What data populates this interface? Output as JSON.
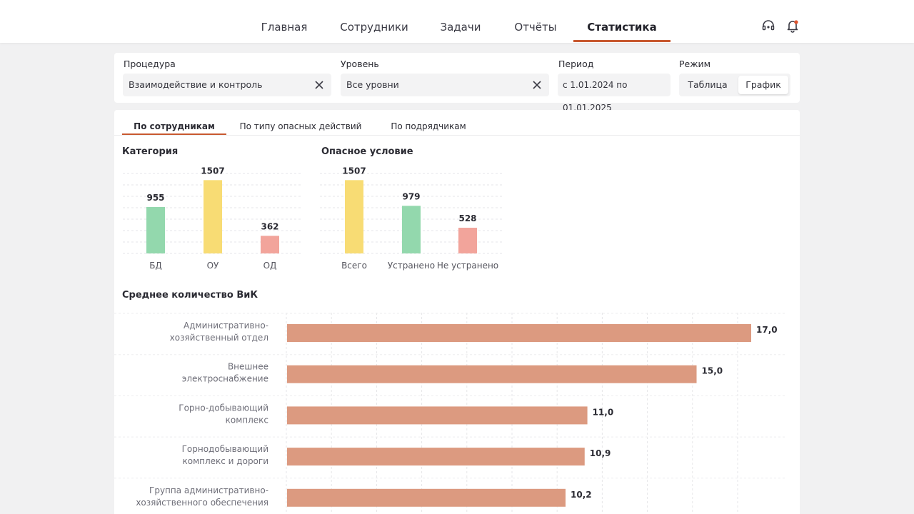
{
  "nav": {
    "items": [
      "Главная",
      "Сотрудники",
      "Задачи",
      "Отчёты",
      "Статистика"
    ],
    "active_index": 4,
    "support_icon": "headset-icon",
    "notification_icon": "bell-icon",
    "notification_badge_color": "#e0522c"
  },
  "filters": {
    "procedure": {
      "label": "Процедура",
      "value": "Взаимодействие и контроль"
    },
    "level": {
      "label": "Уровень",
      "value": "Все уровни"
    },
    "period": {
      "label": "Период",
      "value": "с 1.01.2024 по 01.01.2025"
    },
    "mode": {
      "label": "Режим",
      "options": [
        "Таблица",
        "График"
      ],
      "selected": "График"
    }
  },
  "tabs": {
    "items": [
      "По сотрудникам",
      "По типу опасных действий",
      "По подрядчикам"
    ],
    "active_index": 0
  },
  "colors": {
    "accent": "#c8582f",
    "green": "#93d8ad",
    "yellow": "#f8dc74",
    "red": "#f2a49b",
    "bar_orange": "#dc9a80"
  },
  "chart_data": [
    {
      "type": "bar",
      "title": "Категория",
      "categories": [
        "БД",
        "ОУ",
        "ОД"
      ],
      "values": [
        955,
        1507,
        362
      ],
      "colors": [
        "#93d8ad",
        "#f8dc74",
        "#f2a49b"
      ],
      "ylim": [
        0,
        1600
      ],
      "grid": true
    },
    {
      "type": "bar",
      "title": "Опасное условие",
      "categories": [
        "Всего",
        "Устранено",
        "Не устранено"
      ],
      "values": [
        1507,
        979,
        528
      ],
      "colors": [
        "#f8dc74",
        "#93d8ad",
        "#f2a49b"
      ],
      "ylim": [
        0,
        1600
      ],
      "grid": true
    },
    {
      "type": "bar",
      "orientation": "horizontal",
      "title": "Среднее количество ВиК",
      "categories": [
        [
          "Административно-",
          "хозяйственный отдел"
        ],
        [
          "Внешнее",
          "электроснабжение"
        ],
        [
          "Горно-добывающий",
          "комплекс"
        ],
        [
          "Горнодобывающий",
          "комплекс и дороги"
        ],
        [
          "Группа административно-",
          "хозяйственного обеспечения"
        ]
      ],
      "values": [
        17.0,
        15.0,
        11.0,
        10.9,
        10.2
      ],
      "value_labels": [
        "17,0",
        "15,0",
        "11,0",
        "10,9",
        "10,2"
      ],
      "color": "#dc9a80",
      "xlim": [
        0,
        18
      ],
      "grid": true
    }
  ]
}
